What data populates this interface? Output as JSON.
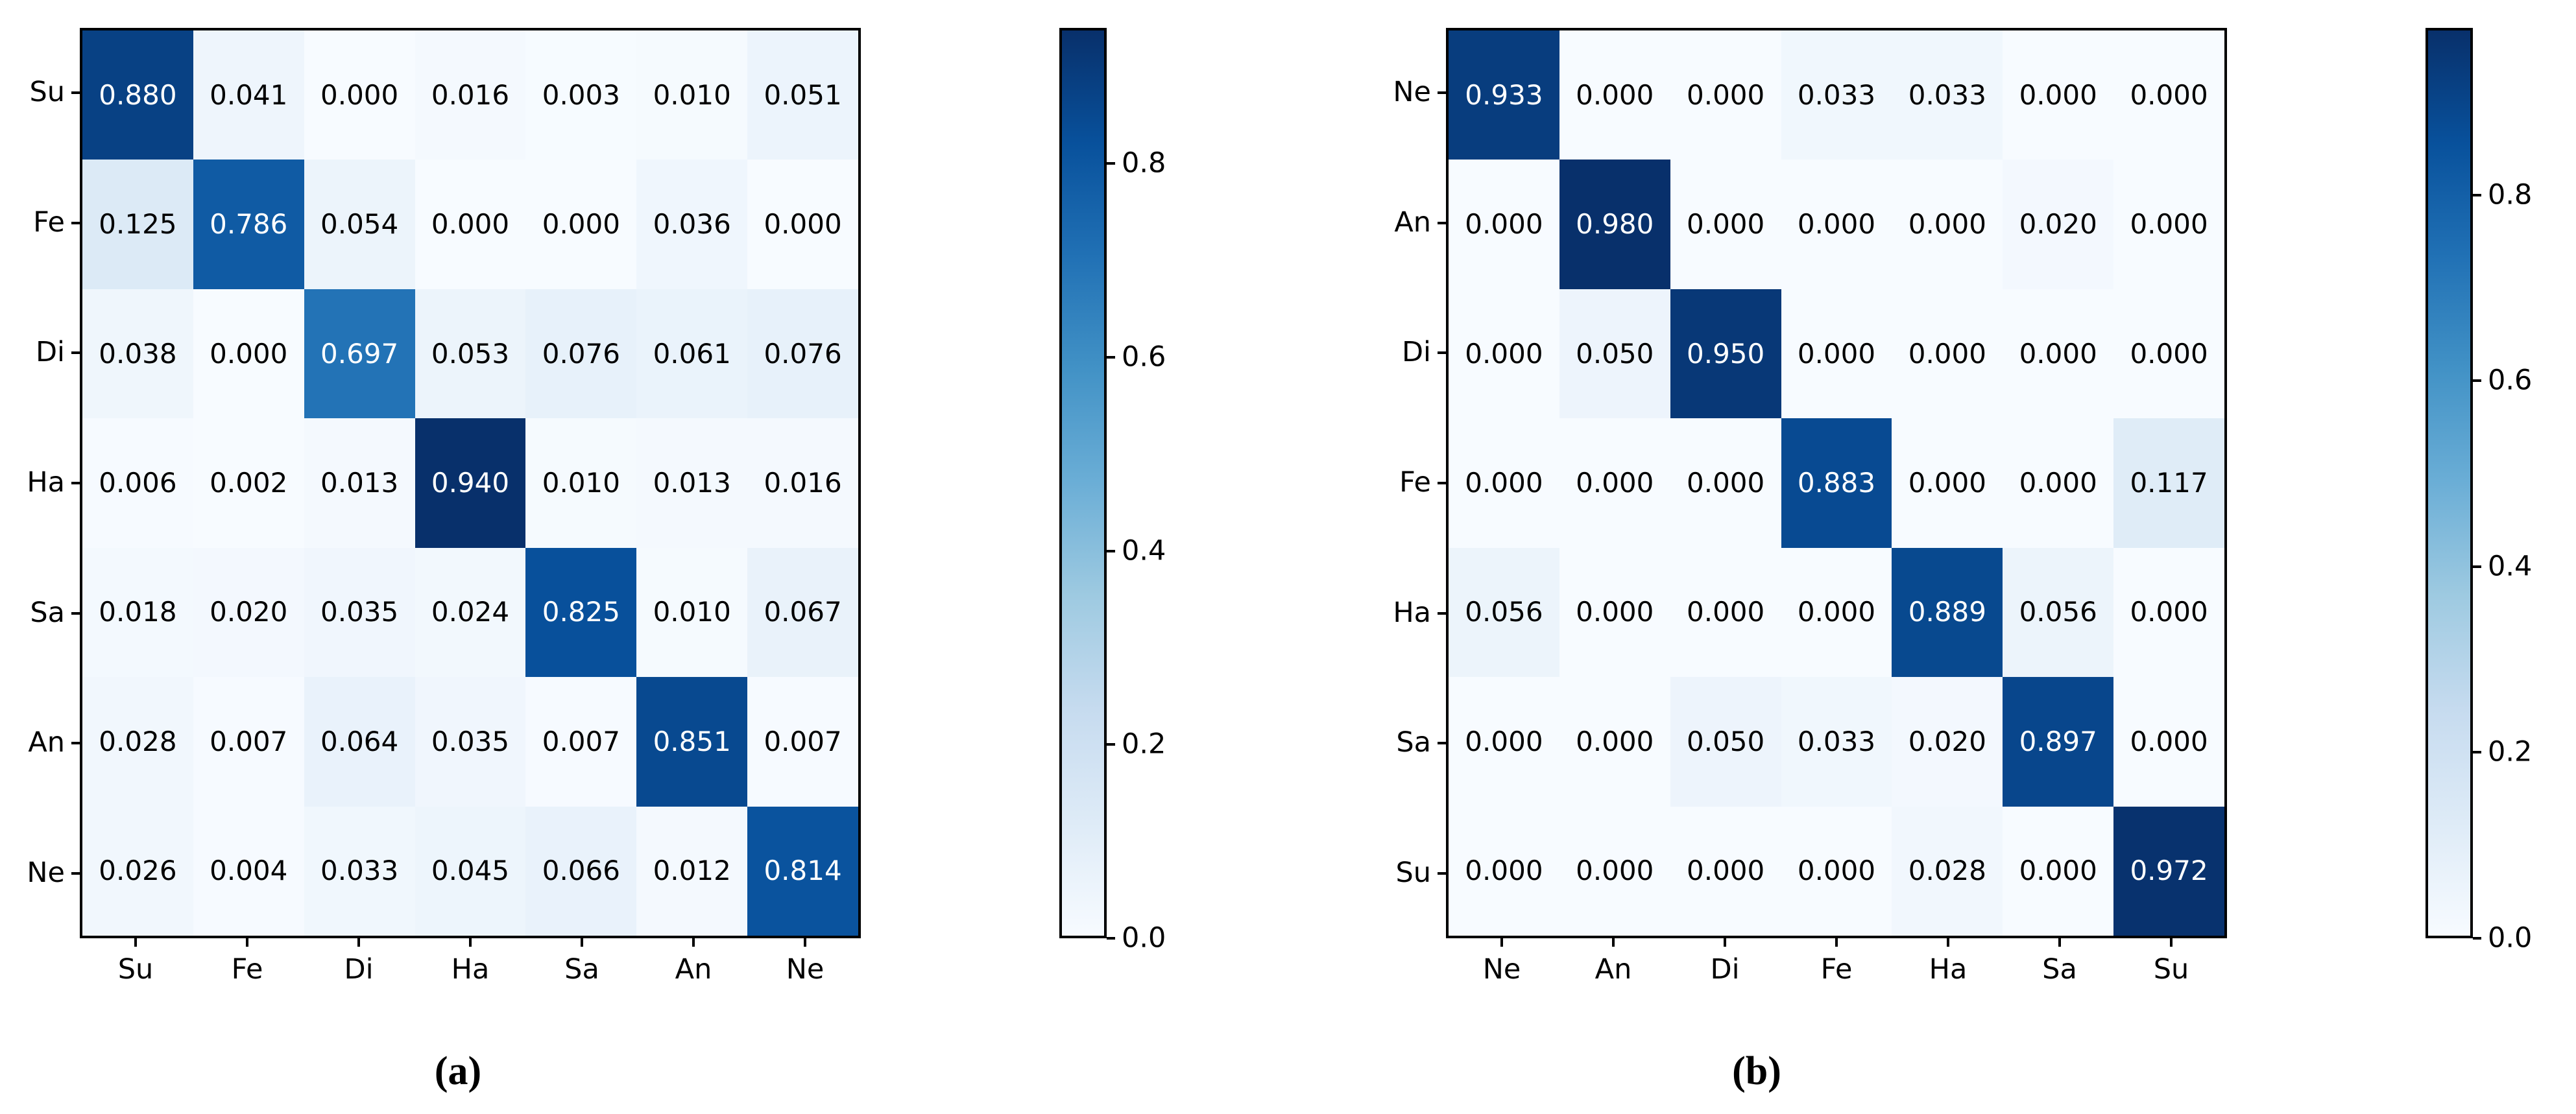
{
  "figure": {
    "background": "#ffffff",
    "panel_count": 2
  },
  "chart_data": [
    {
      "type": "heatmap",
      "panel_label": "(a)",
      "title": "",
      "xlabel": "",
      "ylabel": "",
      "axis_labels": [
        "Su",
        "Fe",
        "Di",
        "Ha",
        "Sa",
        "An",
        "Ne"
      ],
      "matrix": [
        [
          0.88,
          0.041,
          0.0,
          0.016,
          0.003,
          0.01,
          0.051
        ],
        [
          0.125,
          0.786,
          0.054,
          0.0,
          0.0,
          0.036,
          0.0
        ],
        [
          0.038,
          0.0,
          0.697,
          0.053,
          0.076,
          0.061,
          0.076
        ],
        [
          0.006,
          0.002,
          0.013,
          0.94,
          0.01,
          0.013,
          0.016
        ],
        [
          0.018,
          0.02,
          0.035,
          0.024,
          0.825,
          0.01,
          0.067
        ],
        [
          0.028,
          0.007,
          0.064,
          0.035,
          0.007,
          0.851,
          0.007
        ],
        [
          0.026,
          0.004,
          0.033,
          0.045,
          0.066,
          0.012,
          0.814
        ]
      ],
      "value_decimals": 3,
      "vmin": 0.0,
      "vmax": 0.94,
      "colormap": "Blues",
      "colorbar_ticks": [
        "0.0",
        "0.2",
        "0.4",
        "0.6",
        "0.8"
      ],
      "colorbar_tick_values": [
        0.0,
        0.2,
        0.4,
        0.6,
        0.8
      ],
      "grid": false,
      "legend_position": "colorbar-right"
    },
    {
      "type": "heatmap",
      "panel_label": "(b)",
      "title": "",
      "xlabel": "",
      "ylabel": "",
      "axis_labels": [
        "Ne",
        "An",
        "Di",
        "Fe",
        "Ha",
        "Sa",
        "Su"
      ],
      "matrix": [
        [
          0.933,
          0.0,
          0.0,
          0.033,
          0.033,
          0.0,
          0.0
        ],
        [
          0.0,
          0.98,
          0.0,
          0.0,
          0.0,
          0.02,
          0.0
        ],
        [
          0.0,
          0.05,
          0.95,
          0.0,
          0.0,
          0.0,
          0.0
        ],
        [
          0.0,
          0.0,
          0.0,
          0.883,
          0.0,
          0.0,
          0.117
        ],
        [
          0.056,
          0.0,
          0.0,
          0.0,
          0.889,
          0.056,
          0.0
        ],
        [
          0.0,
          0.0,
          0.05,
          0.033,
          0.02,
          0.897,
          0.0
        ],
        [
          0.0,
          0.0,
          0.0,
          0.0,
          0.028,
          0.0,
          0.972
        ]
      ],
      "value_decimals": 3,
      "vmin": 0.0,
      "vmax": 0.98,
      "colormap": "Blues",
      "colorbar_ticks": [
        "0.0",
        "0.2",
        "0.4",
        "0.6",
        "0.8"
      ],
      "colorbar_tick_values": [
        0.0,
        0.2,
        0.4,
        0.6,
        0.8
      ],
      "grid": false,
      "legend_position": "colorbar-right"
    }
  ],
  "colors": {
    "blues_stops": [
      "#f7fbff",
      "#deebf7",
      "#c6dbef",
      "#9ecae1",
      "#6baed6",
      "#4292c6",
      "#2171b5",
      "#08519c",
      "#08306b"
    ],
    "spine": "#000000",
    "tick_text": "#000000",
    "cell_text_dark": "#000000",
    "cell_text_light": "#ffffff"
  }
}
